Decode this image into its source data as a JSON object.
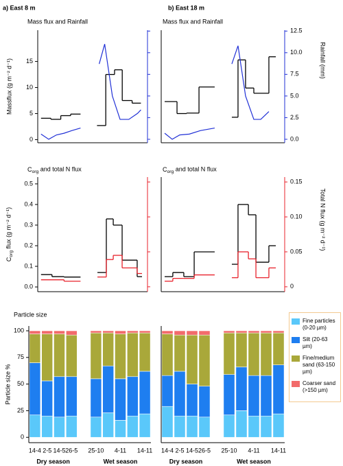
{
  "chart_data": [
    {
      "type": "step",
      "panel": "a) East 8 m",
      "title": "Mass flux and Rainfall",
      "ylabel": "Massflux (g m⁻² d⁻¹)",
      "xlim": [
        0,
        10
      ],
      "ylim": [
        -0.6,
        21
      ],
      "yticks": [
        0,
        5,
        10,
        15
      ],
      "y2lim": [
        -0.4,
        12.6
      ],
      "y2ticks": [
        0,
        2.5,
        5,
        7.5,
        10,
        12.5
      ],
      "y2ticklabels": false,
      "steps": [
        {
          "color": "#000000",
          "edges": [
            0.3,
            1.2,
            2.1,
            3.0,
            3.9
          ],
          "values": [
            4.1,
            3.9,
            4.6,
            4.9
          ]
        },
        {
          "color": "#000000",
          "edges": [
            5.4,
            6.2,
            7.0,
            7.7,
            8.6,
            9.4
          ],
          "values": [
            2.7,
            12.5,
            13.4,
            7.5,
            7.0
          ]
        }
      ],
      "lines": [
        {
          "color": "#1f2fd6",
          "axis": "y2",
          "x": [
            0.3,
            1.0,
            1.7,
            2.4,
            3.1,
            3.9
          ],
          "values": [
            0.6,
            0.0,
            0.5,
            0.7,
            1.0,
            1.3
          ]
        },
        {
          "color": "#1f2fd6",
          "axis": "y2",
          "x": [
            5.6,
            6.1,
            6.8,
            7.5,
            8.3,
            9.1,
            9.4
          ],
          "values": [
            8.7,
            11.0,
            5.0,
            2.3,
            2.3,
            3.0,
            3.4
          ]
        }
      ]
    },
    {
      "type": "step",
      "panel": "b) East 18 m",
      "title": "Mass flux and Rainfall",
      "y2label": "Rainfall (mm)",
      "xlim": [
        0,
        10
      ],
      "ylim": [
        -0.6,
        21
      ],
      "y2lim": [
        -0.4,
        12.6
      ],
      "y2ticks": [
        {
          "value": 0,
          "label": "0.0"
        },
        2.5,
        {
          "value": 5,
          "label": "5.0"
        },
        7.5,
        {
          "value": 10,
          "label": "10.0"
        },
        12.5
      ],
      "steps": [
        {
          "color": "#000000",
          "edges": [
            0.28,
            1.28,
            2.06,
            3.06,
            4.33
          ],
          "values": [
            7.3,
            5.0,
            5.1,
            10.1
          ]
        },
        {
          "color": "#000000",
          "edges": [
            5.72,
            6.22,
            6.83,
            7.5,
            8.72,
            9.28
          ],
          "values": [
            4.3,
            15.3,
            9.9,
            8.9,
            15.9
          ]
        }
      ],
      "lines": [
        {
          "color": "#1f2fd6",
          "axis": "y2",
          "x": [
            0.28,
            0.89,
            1.5,
            2.28,
            3.17,
            4.33
          ],
          "values": [
            0.7,
            0.0,
            0.5,
            0.6,
            1.0,
            1.3
          ]
        },
        {
          "color": "#1f2fd6",
          "axis": "y2",
          "x": [
            5.72,
            6.22,
            6.83,
            7.5,
            8.06,
            8.72
          ],
          "values": [
            8.7,
            10.8,
            5.0,
            2.3,
            2.3,
            3.2
          ]
        }
      ]
    },
    {
      "type": "step",
      "title": [
        "C",
        "org",
        " and total N flux"
      ],
      "ylabel": [
        "C",
        "org",
        " flux (g m⁻² d⁻¹)"
      ],
      "xlim": [
        0,
        10
      ],
      "ylim": [
        -0.023,
        0.533
      ],
      "yticks": [
        {
          "value": 0,
          "label": "0.0"
        },
        0.1,
        0.2,
        0.3,
        0.4,
        0.5
      ],
      "y2lim": [
        -0.007,
        0.157
      ],
      "y2ticks": [
        0,
        0.05,
        0.1,
        0.15
      ],
      "y2ticklabels": false,
      "steps": [
        {
          "color": "#000000",
          "edges": [
            0.3,
            1.3,
            2.4,
            3.9
          ],
          "values": [
            0.06,
            0.05,
            0.048
          ]
        },
        {
          "color": "#e8202a",
          "axis": "y2",
          "edges": [
            0.3,
            2.4,
            3.9
          ],
          "values": [
            0.01,
            0.008
          ]
        },
        {
          "color": "#000000",
          "edges": [
            5.44,
            6.25,
            6.88,
            7.69,
            9.06,
            9.5
          ],
          "values": [
            0.07,
            0.33,
            0.3,
            0.13,
            0.05
          ]
        },
        {
          "color": "#e8202a",
          "axis": "y2",
          "edges": [
            5.44,
            6.25,
            6.88,
            7.69,
            9.06,
            9.5
          ],
          "values": [
            0.014,
            0.039,
            0.045,
            0.027,
            0.019
          ]
        }
      ]
    },
    {
      "type": "step",
      "title": [
        "C",
        "org",
        " and total N flux"
      ],
      "y2label": "Total N flux (g m⁻² d⁻¹)",
      "xlim": [
        0,
        10
      ],
      "ylim": [
        -0.023,
        0.533
      ],
      "y2lim": [
        -0.007,
        0.157
      ],
      "y2ticks": [
        0,
        0.05,
        {
          "value": 0.1,
          "label": "0.10"
        },
        0.15
      ],
      "steps": [
        {
          "color": "#000000",
          "edges": [
            0.28,
            0.94,
            1.83,
            2.67,
            4.33
          ],
          "values": [
            0.05,
            0.07,
            0.05,
            0.17
          ]
        },
        {
          "color": "#e8202a",
          "axis": "y2",
          "edges": [
            0.28,
            0.94,
            1.83,
            2.67,
            4.33
          ],
          "values": [
            0.008,
            0.012,
            0.012,
            0.017
          ]
        },
        {
          "color": "#000000",
          "edges": [
            5.72,
            6.22,
            7.06,
            7.67,
            8.72,
            9.28
          ],
          "values": [
            0.11,
            0.4,
            0.35,
            0.12,
            0.2
          ]
        },
        {
          "color": "#e8202a",
          "axis": "y2",
          "edges": [
            5.72,
            6.22,
            7.06,
            7.67,
            8.72,
            9.28
          ],
          "values": [
            0.013,
            0.05,
            0.04,
            0.013,
            0.027
          ]
        }
      ]
    },
    {
      "type": "bar",
      "stacked": true,
      "title": "Particle size",
      "ylabel": "Particle size %",
      "ylim": [
        -5,
        104.5
      ],
      "yticks": [
        0,
        25,
        50,
        75,
        100
      ],
      "categories": [
        "14-4",
        "2-5",
        "14-5",
        "26-5",
        null,
        "25-10",
        null,
        "4-11",
        null,
        "14-11"
      ],
      "groups": [
        "Dry season",
        "Wet season"
      ],
      "series": [
        {
          "color": "#5ac8fa",
          "values": [
            21,
            20,
            19,
            20,
            null,
            19,
            23,
            16,
            20,
            22
          ]
        },
        {
          "color": "#1e7ef0",
          "values": [
            49,
            33,
            38,
            37,
            null,
            36,
            44,
            39,
            37,
            40
          ]
        },
        {
          "color": "#a9a83a",
          "values": [
            27,
            44,
            40,
            39,
            null,
            43,
            31,
            42,
            41,
            36
          ]
        },
        {
          "color": "#f26b6b",
          "values": [
            3,
            3,
            3,
            4,
            null,
            2,
            2,
            3,
            2,
            2
          ]
        }
      ]
    },
    {
      "type": "bar",
      "stacked": true,
      "ylim": [
        -5,
        104.5
      ],
      "categories": [
        "14-4",
        "2-5",
        "14-5",
        "26-5",
        null,
        "25-10",
        null,
        "4-11",
        null,
        "14-11"
      ],
      "groups": [
        "Dry season",
        "Wet season"
      ],
      "series": [
        {
          "name": "Fine particles (0-20 µm)",
          "color": "#5ac8fa",
          "values": [
            29,
            20,
            20,
            19,
            null,
            21,
            25,
            20,
            20,
            22
          ]
        },
        {
          "name": "Silt (20-63 µm)",
          "color": "#1e7ef0",
          "values": [
            29,
            42,
            30,
            29,
            null,
            38,
            41,
            38,
            38,
            46
          ]
        },
        {
          "name": "Fine/medium sand (63-150 µm)",
          "color": "#a9a83a",
          "values": [
            39,
            34,
            46,
            48,
            null,
            39,
            32,
            40,
            40,
            30
          ]
        },
        {
          "name": "Coarser sand (>150 µm)",
          "color": "#f26b6b",
          "values": [
            3,
            4,
            4,
            4,
            null,
            2,
            2,
            2,
            2,
            2
          ]
        }
      ]
    }
  ]
}
